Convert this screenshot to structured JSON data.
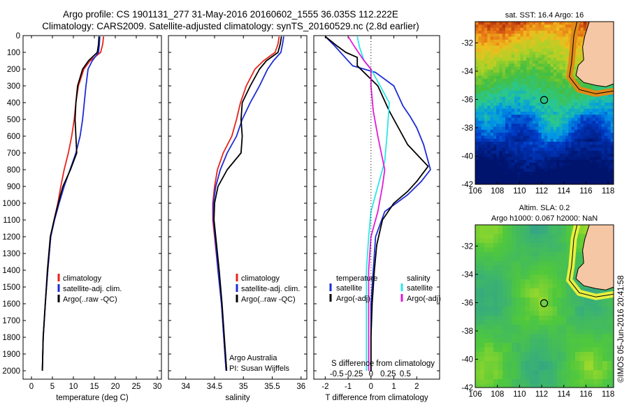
{
  "header": {
    "line1": "Argo profile: CS 1901131_277 31-May-2016 20160602_1555 36.035S 112.222E",
    "line2": "Climatology: CARS2009. Satellite-adjusted climatology: synTS_20160529.nc (2.8d earlier)"
  },
  "colors": {
    "climatology": "#e8231b",
    "satellite": "#1d2bd6",
    "argo": "#000000",
    "sat_salinity": "#2ee6e6",
    "argo_salinity": "#e01bd8"
  },
  "chart_data": [
    {
      "type": "line",
      "id": "temperature",
      "xlabel": "temperature (deg C)",
      "ylabel": "",
      "xlim": [
        -2,
        31
      ],
      "ylim": [
        0,
        2050
      ],
      "y_inverted": true,
      "xticks": [
        0,
        5,
        10,
        15,
        20,
        25,
        30
      ],
      "yticks": [
        0,
        100,
        200,
        300,
        400,
        500,
        600,
        700,
        800,
        900,
        1000,
        1100,
        1200,
        1300,
        1400,
        1500,
        1600,
        1700,
        1800,
        1900,
        2000
      ],
      "legend": [
        "climatology",
        "satellite-adj. clim.",
        "Argo(..raw -QC)"
      ],
      "series": [
        {
          "name": "climatology",
          "color": "climatology",
          "x": [
            17.2,
            17.0,
            16.5,
            14.0,
            12.5,
            11.2,
            10.6,
            10.2,
            9.6,
            8.8,
            7.8,
            7.0,
            6.3,
            5.4,
            4.6,
            3.9,
            3.3,
            2.8,
            2.6
          ],
          "y": [
            5,
            50,
            100,
            150,
            200,
            300,
            400,
            500,
            600,
            700,
            800,
            900,
            1000,
            1100,
            1200,
            1400,
            1600,
            1800,
            2000
          ]
        },
        {
          "name": "satellite-adj. clim.",
          "color": "satellite",
          "x": [
            16.3,
            16.2,
            16.0,
            14.5,
            13.5,
            13.0,
            12.6,
            12.2,
            11.6,
            10.6,
            9.2,
            7.8,
            6.6,
            5.5,
            4.6,
            3.9,
            3.3,
            2.8,
            2.6
          ],
          "y": [
            5,
            50,
            100,
            150,
            200,
            300,
            400,
            500,
            600,
            700,
            800,
            900,
            1000,
            1100,
            1200,
            1400,
            1600,
            1800,
            2000
          ]
        },
        {
          "name": "Argo(..raw -QC)",
          "color": "argo",
          "x": [
            16.1,
            16.0,
            15.7,
            13.6,
            12.2,
            11.0,
            10.6,
            10.4,
            10.6,
            10.8,
            9.3,
            7.5,
            6.4,
            5.4,
            4.5,
            3.8,
            3.3,
            2.8,
            2.6
          ],
          "y": [
            5,
            50,
            100,
            150,
            200,
            300,
            400,
            500,
            600,
            700,
            800,
            900,
            1000,
            1100,
            1200,
            1400,
            1600,
            1800,
            2000
          ]
        }
      ]
    },
    {
      "type": "line",
      "id": "salinity",
      "xlabel": "salinity",
      "xlim": [
        33.7,
        36.1
      ],
      "ylim": [
        0,
        2050
      ],
      "y_inverted": true,
      "xticks": [
        34,
        34.5,
        35,
        35.5,
        36
      ],
      "legend": [
        "climatology",
        "satellite-adj. clim.",
        "Argo(..raw -QC)"
      ],
      "annotation": [
        "Argo Australia",
        "PI: Susan Wijffels"
      ],
      "series": [
        {
          "name": "climatology",
          "color": "climatology",
          "x": [
            35.62,
            35.6,
            35.55,
            35.35,
            35.2,
            35.05,
            34.95,
            34.88,
            34.8,
            34.65,
            34.55,
            34.5,
            34.47,
            34.47,
            34.5,
            34.56,
            34.62,
            34.66,
            34.7
          ],
          "y": [
            5,
            50,
            100,
            150,
            200,
            300,
            400,
            500,
            600,
            700,
            800,
            900,
            1000,
            1100,
            1200,
            1400,
            1600,
            1800,
            2000
          ]
        },
        {
          "name": "satellite-adj. clim.",
          "color": "satellite",
          "x": [
            35.7,
            35.68,
            35.65,
            35.52,
            35.42,
            35.28,
            35.12,
            34.98,
            34.88,
            34.72,
            34.6,
            34.52,
            34.48,
            34.48,
            34.51,
            34.56,
            34.62,
            34.66,
            34.7
          ],
          "y": [
            5,
            50,
            100,
            150,
            200,
            300,
            400,
            500,
            600,
            700,
            800,
            900,
            1000,
            1100,
            1200,
            1400,
            1600,
            1800,
            2000
          ]
        },
        {
          "name": "Argo(..raw -QC)",
          "color": "argo",
          "x": [
            35.66,
            35.64,
            35.6,
            35.4,
            35.28,
            35.12,
            34.98,
            34.96,
            34.98,
            34.96,
            34.72,
            34.56,
            34.5,
            34.49,
            34.52,
            34.58,
            34.63,
            34.67,
            34.71
          ],
          "y": [
            5,
            50,
            100,
            150,
            200,
            300,
            400,
            500,
            600,
            700,
            800,
            900,
            1000,
            1100,
            1200,
            1400,
            1600,
            1800,
            2000
          ]
        }
      ]
    },
    {
      "type": "line",
      "id": "difference",
      "xlabel": "T difference from climatology",
      "xlabel_top": "S difference from climatology",
      "xlim": [
        -2.5,
        3.0
      ],
      "ylim": [
        0,
        2050
      ],
      "y_inverted": true,
      "xticks": [
        -2,
        -1,
        0,
        1,
        2
      ],
      "xticklabels": [
        "-2",
        "-1",
        "0",
        "1",
        "2"
      ],
      "sticks_at_x": [
        -1.5,
        -0.75,
        0.75,
        1.5
      ],
      "sticklabels": [
        "-0.5",
        "-0.25",
        "0.25",
        "0.5"
      ],
      "legend_temperature": [
        "temperature",
        "satellite",
        "Argo(-adj)"
      ],
      "legend_salinity": [
        "salinity",
        "satellite",
        "Argo(-adj)"
      ],
      "series": [
        {
          "name": "satellite",
          "color": "satellite",
          "x": [
            -2.0,
            -1.6,
            -1.2,
            -0.8,
            0.2,
            1.0,
            1.4,
            1.7,
            2.0,
            2.3,
            2.6,
            2.2,
            1.6,
            0.6,
            0.2,
            0.1,
            0.0,
            0.0,
            0.0
          ],
          "y": [
            5,
            60,
            120,
            180,
            220,
            300,
            420,
            480,
            550,
            650,
            800,
            870,
            950,
            1050,
            1200,
            1400,
            1600,
            1800,
            2000
          ]
        },
        {
          "name": "Argo(-adj)",
          "color": "argo",
          "x": [
            -2.0,
            -1.5,
            -1.1,
            -0.6,
            -0.6,
            0.3,
            0.8,
            1.2,
            1.6,
            2.5,
            2.0,
            1.6,
            1.0,
            0.5,
            0.25,
            0.15,
            0.05,
            0.0,
            0.0
          ],
          "y": [
            5,
            60,
            100,
            130,
            180,
            300,
            450,
            550,
            650,
            780,
            870,
            930,
            1000,
            1100,
            1250,
            1400,
            1600,
            1800,
            2000
          ]
        },
        {
          "name": "satellite",
          "color": "sat_salinity",
          "x": [
            -0.6,
            -0.5,
            -0.3,
            0.0,
            0.4,
            0.8,
            0.7,
            0.6,
            0.3,
            0.0,
            -0.1,
            -0.2,
            -0.2,
            -0.2
          ],
          "y": [
            5,
            70,
            150,
            200,
            300,
            400,
            600,
            750,
            900,
            1050,
            1200,
            1400,
            1700,
            2000
          ]
        },
        {
          "name": "Argo(-adj)",
          "color": "argo_salinity",
          "x": [
            -1.0,
            -0.7,
            -0.3,
            0.0,
            0.0,
            0.1,
            0.3,
            0.6,
            0.5,
            0.3,
            0.0,
            -0.1,
            -0.1,
            -0.1
          ],
          "y": [
            5,
            70,
            150,
            200,
            300,
            450,
            600,
            800,
            900,
            1050,
            1200,
            1400,
            1700,
            2000
          ]
        }
      ]
    },
    {
      "type": "heatmap",
      "id": "sst_map",
      "title": "sat. SST: 16.4  Argo: 16",
      "xlim": [
        106,
        118.5
      ],
      "ylim": [
        -42,
        -30.5
      ],
      "xticks": [
        106,
        108,
        110,
        112,
        114,
        116,
        118
      ],
      "yticks": [
        -32,
        -34,
        -36,
        -38,
        -40,
        -42
      ],
      "marker": {
        "lon": 112.222,
        "lat": -36.035
      }
    },
    {
      "type": "heatmap",
      "id": "sla_map",
      "title_lines": [
        "Altim. SLA: 0.2",
        "Argo h1000: 0.067  h2000: NaN"
      ],
      "xlim": [
        106,
        118.5
      ],
      "ylim": [
        -42,
        -30.5
      ],
      "xticks": [
        106,
        108,
        110,
        112,
        114,
        116,
        118
      ],
      "yticks": [
        -32,
        -34,
        -36,
        -38,
        -40,
        -42
      ],
      "marker": {
        "lon": 112.222,
        "lat": -36.035
      }
    }
  ],
  "footer": {
    "credit": "©IMOS 05-Jun-2016 20:41:58"
  }
}
